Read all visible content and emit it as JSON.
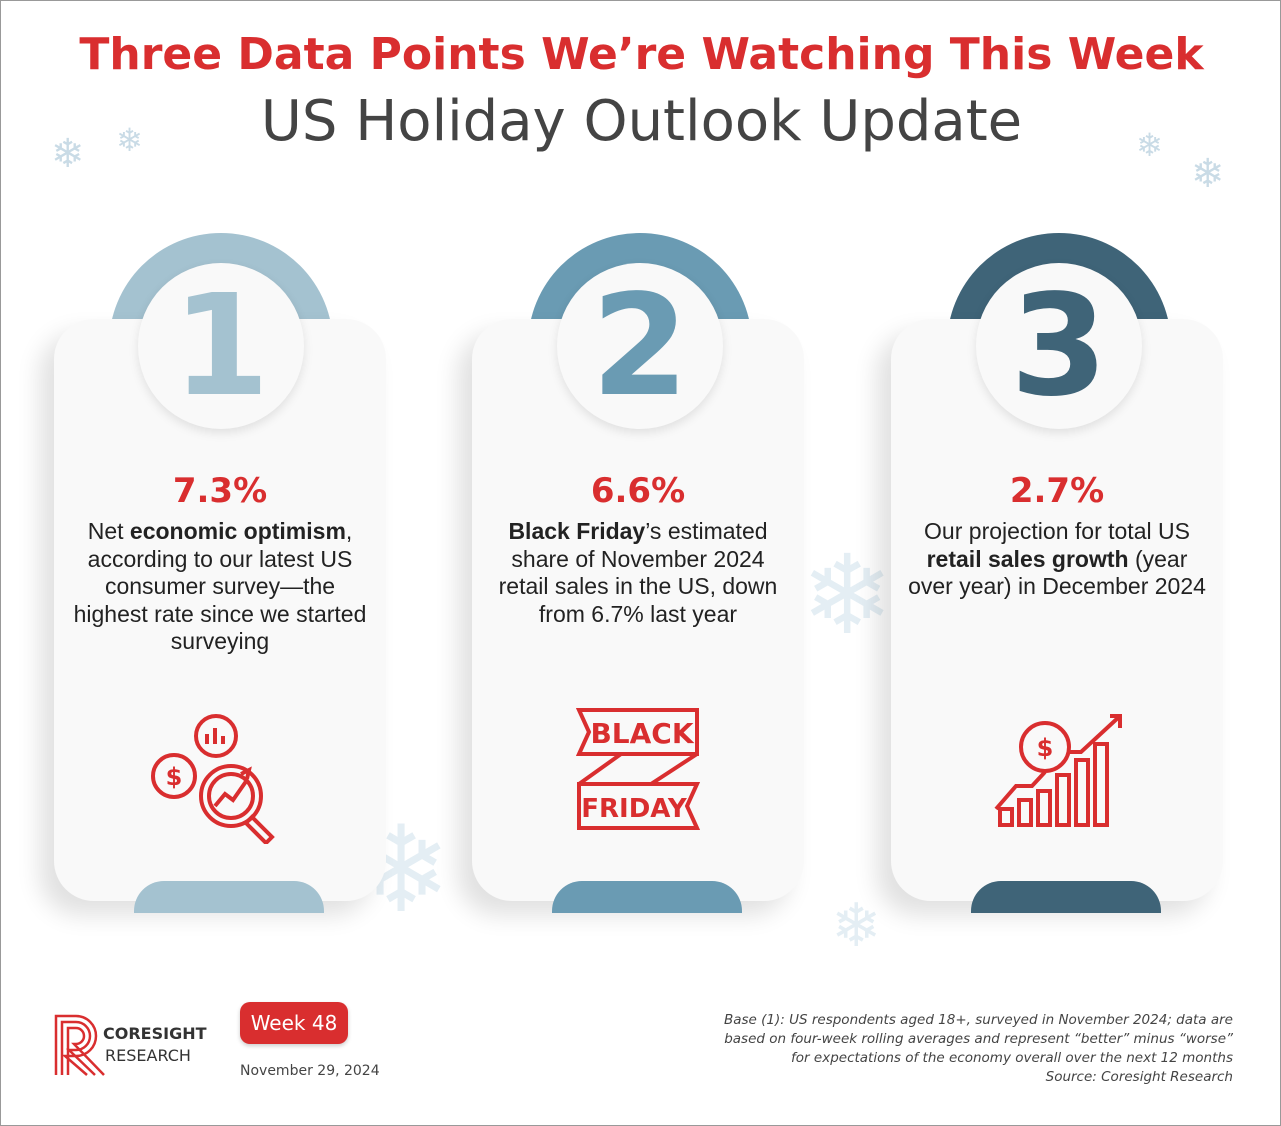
{
  "header": {
    "title": "Three Data Points We’re Watching This Week",
    "subtitle": "US Holiday Outlook Update"
  },
  "colors": {
    "accent": "#d92e2f",
    "card1": "#a4c2d0",
    "card2": "#6a9bb3",
    "card3": "#3f6478"
  },
  "cards": [
    {
      "number": "1",
      "value": "7.3%",
      "text_parts": [
        "Net ",
        "economic optimism",
        ", according to our latest US consumer survey—the highest rate since we started surveying"
      ],
      "icon": "magnifier-dollar-chart-icon"
    },
    {
      "number": "2",
      "value": "6.6%",
      "text_parts": [
        "Black Friday",
        "’s estimated share of November 2024 retail sales in the US, down from 6.7% last year"
      ],
      "icon": "black-friday-banner-icon",
      "icon_text": [
        "BLACK",
        "FRIDAY"
      ]
    },
    {
      "number": "3",
      "value": "2.7%",
      "text_parts": [
        "Our projection for total US ",
        "retail sales growth",
        " (year over year) in December 2024"
      ],
      "icon": "growth-bar-chart-dollar-icon"
    }
  ],
  "footer": {
    "logo_line1": "CORESIGHT",
    "logo_line2": "RESEARCH",
    "week": "Week 48",
    "date": "November 29, 2024",
    "notes": [
      "Base (1): US respondents aged 18+, surveyed in November 2024; data are",
      "based on four-week rolling averages and represent “better” minus “worse”",
      "for expectations of the economy overall over the next 12 months",
      "Source: Coresight Research"
    ]
  }
}
